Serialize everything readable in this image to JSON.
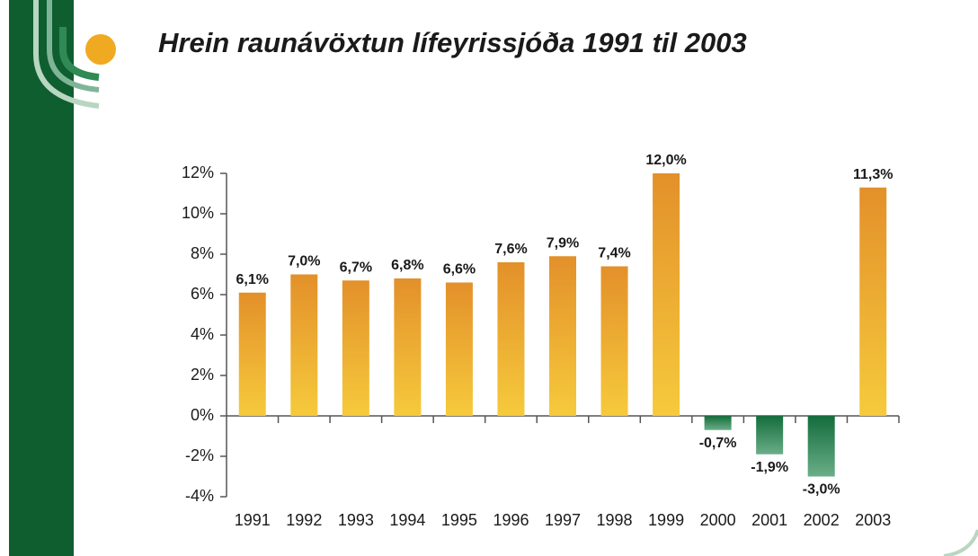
{
  "chart_data": {
    "type": "bar",
    "title": "Hrein raunávöxtun lífeyrissjóða 1991 til 2003",
    "categories": [
      "1991",
      "1992",
      "1993",
      "1994",
      "1995",
      "1996",
      "1997",
      "1998",
      "1999",
      "2000",
      "2001",
      "2002",
      "2003"
    ],
    "values": [
      6.1,
      7.0,
      6.7,
      6.8,
      6.6,
      7.6,
      7.9,
      7.4,
      12.0,
      -0.7,
      -1.9,
      -3.0,
      11.3
    ],
    "value_labels": [
      "6,1%",
      "7,0%",
      "6,7%",
      "6,8%",
      "6,6%",
      "7,6%",
      "7,9%",
      "7,4%",
      "12,0%",
      "-0,7%",
      "-1,9%",
      "-3,0%",
      "11,3%"
    ],
    "color": "#e3902a",
    "color_light": "#f6ca3c",
    "negative_color": "#146c3c",
    "negative_color_light": "#6aae88",
    "ylim": [
      -4,
      12
    ],
    "yticks": [
      {
        "value": -4,
        "label": "-4%"
      },
      {
        "value": -2,
        "label": "-2%"
      },
      {
        "value": 0,
        "label": "0%"
      },
      {
        "value": 2,
        "label": "2%"
      },
      {
        "value": 4,
        "label": "4%"
      },
      {
        "value": 6,
        "label": "6%"
      },
      {
        "value": 8,
        "label": "8%"
      },
      {
        "value": 10,
        "label": "10%"
      },
      {
        "value": 12,
        "label": "12%"
      }
    ],
    "grid": false
  }
}
